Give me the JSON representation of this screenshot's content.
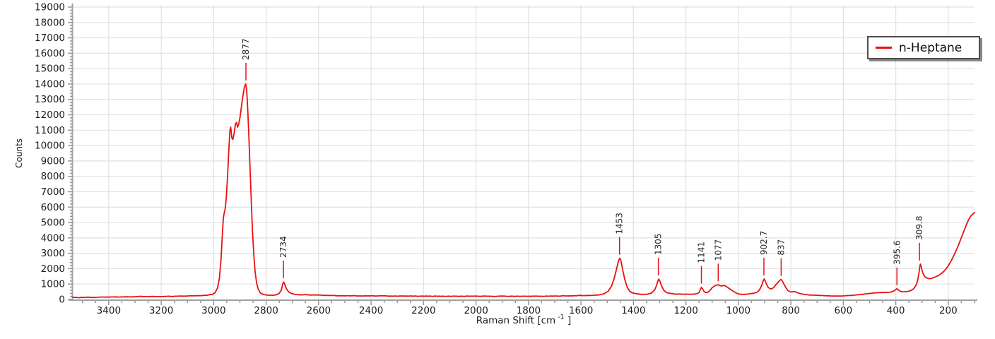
{
  "chart_data": {
    "type": "line",
    "title": "",
    "xlabel": {
      "prefix": "Raman Shift [cm",
      "sup": "-1",
      "suffix": " ]"
    },
    "ylabel": "Counts",
    "grid": true,
    "legend": {
      "label": "n-Heptane",
      "position": "top-right"
    },
    "colors": {
      "line": "#e81112",
      "grid": "#e1e1e1",
      "axis": "#a0a0a0",
      "tick": "#8f8f8f",
      "text": "#1c1c1c",
      "peak_label": "#2a2a2a"
    },
    "x_axis": {
      "max": 3537,
      "min": 100,
      "reversed": true,
      "minor_step": 50,
      "tick_values": [
        3400,
        3200,
        3000,
        2800,
        2600,
        2400,
        2200,
        2000,
        1800,
        1600,
        1400,
        1200,
        1000,
        800,
        600,
        400,
        200
      ],
      "tick_labels": [
        "3400",
        "3200",
        "3000",
        "2800",
        "2600",
        "2400",
        "2200",
        "2000",
        "1800",
        "1600",
        "1400",
        "1200",
        "1000",
        "800",
        "600",
        "400",
        "200"
      ]
    },
    "y_axis": {
      "min": 0,
      "max": 19000,
      "minor_step": 200,
      "tick_values": [
        0,
        1000,
        2000,
        3000,
        4000,
        5000,
        6000,
        7000,
        8000,
        9000,
        10000,
        11000,
        12000,
        13000,
        14000,
        15000,
        16000,
        17000,
        18000,
        19000
      ],
      "tick_labels": [
        "0",
        "1000",
        "2000",
        "3000",
        "4000",
        "5000",
        "6000",
        "7000",
        "8000",
        "9000",
        "10000",
        "11000",
        "12000",
        "13000",
        "14000",
        "15000",
        "16000",
        "17000",
        "18000",
        "19000"
      ]
    },
    "peaks": [
      {
        "label": "2877",
        "x": 2877,
        "counts": 14000
      },
      {
        "label": "2734",
        "x": 2734,
        "counts": 1150
      },
      {
        "label": "1453",
        "x": 1453,
        "counts": 2680
      },
      {
        "label": "1305",
        "x": 1305,
        "counts": 1330
      },
      {
        "label": "1141",
        "x": 1141,
        "counts": 800
      },
      {
        "label": "1077",
        "x": 1077,
        "counts": 950
      },
      {
        "label": "902.7",
        "x": 902.7,
        "counts": 1330
      },
      {
        "label": "837",
        "x": 837,
        "counts": 1300
      },
      {
        "label": "395.6",
        "x": 395.6,
        "counts": 700
      },
      {
        "label": "309.8",
        "x": 309.8,
        "counts": 2300
      }
    ],
    "series": [
      {
        "name": "n-Heptane",
        "color": "#e81112",
        "points": [
          [
            3537,
            150
          ],
          [
            3520,
            120
          ],
          [
            3500,
            130
          ],
          [
            3480,
            150
          ],
          [
            3460,
            130
          ],
          [
            3440,
            140
          ],
          [
            3420,
            155
          ],
          [
            3400,
            150
          ],
          [
            3380,
            165
          ],
          [
            3360,
            155
          ],
          [
            3340,
            170
          ],
          [
            3320,
            165
          ],
          [
            3300,
            175
          ],
          [
            3280,
            205
          ],
          [
            3260,
            185
          ],
          [
            3240,
            195
          ],
          [
            3220,
            185
          ],
          [
            3200,
            190
          ],
          [
            3180,
            200
          ],
          [
            3160,
            195
          ],
          [
            3140,
            210
          ],
          [
            3120,
            215
          ],
          [
            3100,
            225
          ],
          [
            3080,
            235
          ],
          [
            3060,
            245
          ],
          [
            3040,
            260
          ],
          [
            3020,
            290
          ],
          [
            3005,
            330
          ],
          [
            2995,
            430
          ],
          [
            2985,
            750
          ],
          [
            2978,
            1400
          ],
          [
            2972,
            2600
          ],
          [
            2967,
            4200
          ],
          [
            2963,
            5300
          ],
          [
            2960,
            5600
          ],
          [
            2956,
            5900
          ],
          [
            2952,
            6600
          ],
          [
            2947,
            8000
          ],
          [
            2942,
            9800
          ],
          [
            2938,
            11000
          ],
          [
            2935,
            11200
          ],
          [
            2931,
            10500
          ],
          [
            2927,
            10400
          ],
          [
            2922,
            10800
          ],
          [
            2917,
            11400
          ],
          [
            2913,
            11500
          ],
          [
            2909,
            11200
          ],
          [
            2905,
            11350
          ],
          [
            2900,
            11800
          ],
          [
            2895,
            12400
          ],
          [
            2889,
            13200
          ],
          [
            2883,
            13800
          ],
          [
            2878,
            14000
          ],
          [
            2874,
            13600
          ],
          [
            2870,
            12300
          ],
          [
            2866,
            10700
          ],
          [
            2862,
            8800
          ],
          [
            2857,
            6500
          ],
          [
            2852,
            4400
          ],
          [
            2847,
            2900
          ],
          [
            2842,
            1800
          ],
          [
            2836,
            1050
          ],
          [
            2830,
            650
          ],
          [
            2822,
            430
          ],
          [
            2812,
            330
          ],
          [
            2800,
            290
          ],
          [
            2788,
            270
          ],
          [
            2775,
            270
          ],
          [
            2762,
            300
          ],
          [
            2750,
            400
          ],
          [
            2742,
            620
          ],
          [
            2736,
            1050
          ],
          [
            2733,
            1130
          ],
          [
            2729,
            980
          ],
          [
            2723,
            700
          ],
          [
            2714,
            490
          ],
          [
            2704,
            390
          ],
          [
            2692,
            340
          ],
          [
            2680,
            310
          ],
          [
            2665,
            305
          ],
          [
            2650,
            315
          ],
          [
            2635,
            290
          ],
          [
            2620,
            300
          ],
          [
            2600,
            295
          ],
          [
            2580,
            270
          ],
          [
            2560,
            260
          ],
          [
            2540,
            255
          ],
          [
            2520,
            245
          ],
          [
            2500,
            240
          ],
          [
            2470,
            245
          ],
          [
            2440,
            230
          ],
          [
            2410,
            235
          ],
          [
            2380,
            225
          ],
          [
            2350,
            235
          ],
          [
            2320,
            215
          ],
          [
            2290,
            225
          ],
          [
            2260,
            215
          ],
          [
            2230,
            220
          ],
          [
            2200,
            215
          ],
          [
            2170,
            205
          ],
          [
            2140,
            215
          ],
          [
            2110,
            205
          ],
          [
            2080,
            210
          ],
          [
            2050,
            205
          ],
          [
            2020,
            215
          ],
          [
            1990,
            205
          ],
          [
            1960,
            210
          ],
          [
            1930,
            200
          ],
          [
            1900,
            215
          ],
          [
            1870,
            205
          ],
          [
            1840,
            210
          ],
          [
            1810,
            205
          ],
          [
            1780,
            210
          ],
          [
            1750,
            205
          ],
          [
            1720,
            215
          ],
          [
            1690,
            220
          ],
          [
            1660,
            230
          ],
          [
            1630,
            240
          ],
          [
            1610,
            255
          ],
          [
            1590,
            250
          ],
          [
            1570,
            260
          ],
          [
            1550,
            275
          ],
          [
            1530,
            300
          ],
          [
            1512,
            370
          ],
          [
            1497,
            520
          ],
          [
            1484,
            850
          ],
          [
            1473,
            1400
          ],
          [
            1464,
            2000
          ],
          [
            1457,
            2500
          ],
          [
            1452,
            2680
          ],
          [
            1447,
            2480
          ],
          [
            1441,
            1950
          ],
          [
            1433,
            1300
          ],
          [
            1424,
            800
          ],
          [
            1415,
            550
          ],
          [
            1406,
            440
          ],
          [
            1396,
            390
          ],
          [
            1385,
            355
          ],
          [
            1372,
            335
          ],
          [
            1358,
            330
          ],
          [
            1344,
            355
          ],
          [
            1330,
            430
          ],
          [
            1319,
            620
          ],
          [
            1311,
            950
          ],
          [
            1306,
            1250
          ],
          [
            1303,
            1320
          ],
          [
            1299,
            1180
          ],
          [
            1293,
            880
          ],
          [
            1285,
            610
          ],
          [
            1276,
            470
          ],
          [
            1266,
            410
          ],
          [
            1254,
            375
          ],
          [
            1242,
            355
          ],
          [
            1230,
            345
          ],
          [
            1218,
            350
          ],
          [
            1206,
            340
          ],
          [
            1194,
            345
          ],
          [
            1182,
            340
          ],
          [
            1170,
            345
          ],
          [
            1158,
            370
          ],
          [
            1150,
            450
          ],
          [
            1144,
            680
          ],
          [
            1141,
            790
          ],
          [
            1137,
            700
          ],
          [
            1131,
            530
          ],
          [
            1124,
            450
          ],
          [
            1116,
            470
          ],
          [
            1108,
            600
          ],
          [
            1099,
            780
          ],
          [
            1090,
            880
          ],
          [
            1083,
            930
          ],
          [
            1077,
            950
          ],
          [
            1071,
            900
          ],
          [
            1064,
            870
          ],
          [
            1057,
            910
          ],
          [
            1050,
            880
          ],
          [
            1042,
            800
          ],
          [
            1033,
            690
          ],
          [
            1024,
            580
          ],
          [
            1015,
            480
          ],
          [
            1006,
            400
          ],
          [
            997,
            350
          ],
          [
            988,
            330
          ],
          [
            978,
            330
          ],
          [
            968,
            345
          ],
          [
            955,
            370
          ],
          [
            942,
            400
          ],
          [
            930,
            460
          ],
          [
            920,
            610
          ],
          [
            912,
            880
          ],
          [
            906,
            1180
          ],
          [
            902,
            1330
          ],
          [
            898,
            1220
          ],
          [
            893,
            1000
          ],
          [
            887,
            800
          ],
          [
            880,
            700
          ],
          [
            873,
            690
          ],
          [
            865,
            780
          ],
          [
            856,
            980
          ],
          [
            848,
            1130
          ],
          [
            841,
            1260
          ],
          [
            837,
            1300
          ],
          [
            832,
            1180
          ],
          [
            826,
            980
          ],
          [
            819,
            760
          ],
          [
            811,
            580
          ],
          [
            803,
            500
          ],
          [
            796,
            490
          ],
          [
            789,
            510
          ],
          [
            782,
            490
          ],
          [
            774,
            430
          ],
          [
            766,
            390
          ],
          [
            756,
            350
          ],
          [
            746,
            320
          ],
          [
            734,
            300
          ],
          [
            722,
            285
          ],
          [
            710,
            275
          ],
          [
            698,
            265
          ],
          [
            686,
            255
          ],
          [
            674,
            245
          ],
          [
            662,
            235
          ],
          [
            650,
            230
          ],
          [
            638,
            225
          ],
          [
            626,
            220
          ],
          [
            614,
            225
          ],
          [
            602,
            230
          ],
          [
            590,
            245
          ],
          [
            578,
            255
          ],
          [
            566,
            270
          ],
          [
            554,
            285
          ],
          [
            542,
            305
          ],
          [
            530,
            330
          ],
          [
            518,
            355
          ],
          [
            506,
            380
          ],
          [
            494,
            400
          ],
          [
            482,
            420
          ],
          [
            470,
            435
          ],
          [
            458,
            445
          ],
          [
            446,
            450
          ],
          [
            434,
            455
          ],
          [
            424,
            465
          ],
          [
            415,
            500
          ],
          [
            407,
            560
          ],
          [
            400,
            640
          ],
          [
            396,
            700
          ],
          [
            392,
            650
          ],
          [
            387,
            570
          ],
          [
            381,
            520
          ],
          [
            374,
            500
          ],
          [
            367,
            505
          ],
          [
            360,
            515
          ],
          [
            352,
            530
          ],
          [
            344,
            570
          ],
          [
            336,
            640
          ],
          [
            329,
            760
          ],
          [
            322,
            960
          ],
          [
            316,
            1300
          ],
          [
            311,
            1800
          ],
          [
            308,
            2200
          ],
          [
            306,
            2300
          ],
          [
            303,
            2150
          ],
          [
            300,
            1900
          ],
          [
            296,
            1680
          ],
          [
            291,
            1520
          ],
          [
            286,
            1430
          ],
          [
            280,
            1380
          ],
          [
            273,
            1350
          ],
          [
            266,
            1360
          ],
          [
            258,
            1400
          ],
          [
            250,
            1460
          ],
          [
            242,
            1520
          ],
          [
            234,
            1590
          ],
          [
            226,
            1690
          ],
          [
            218,
            1810
          ],
          [
            210,
            1960
          ],
          [
            202,
            2140
          ],
          [
            194,
            2360
          ],
          [
            186,
            2600
          ],
          [
            178,
            2880
          ],
          [
            170,
            3180
          ],
          [
            162,
            3500
          ],
          [
            154,
            3850
          ],
          [
            146,
            4200
          ],
          [
            138,
            4550
          ],
          [
            130,
            4900
          ],
          [
            122,
            5200
          ],
          [
            114,
            5420
          ],
          [
            106,
            5560
          ],
          [
            100,
            5650
          ]
        ]
      }
    ]
  }
}
